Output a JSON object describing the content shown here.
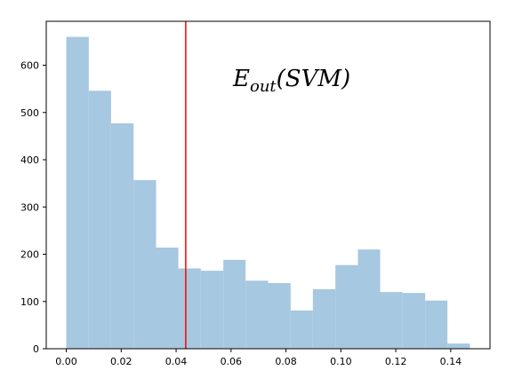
{
  "chart_data": {
    "type": "bar",
    "bins": [
      {
        "x0": 0.0,
        "x1": 0.0082,
        "count": 660
      },
      {
        "x0": 0.0082,
        "x1": 0.0163,
        "count": 546
      },
      {
        "x0": 0.0163,
        "x1": 0.0245,
        "count": 477
      },
      {
        "x0": 0.0245,
        "x1": 0.0327,
        "count": 357
      },
      {
        "x0": 0.0327,
        "x1": 0.0408,
        "count": 214
      },
      {
        "x0": 0.0408,
        "x1": 0.049,
        "count": 170
      },
      {
        "x0": 0.049,
        "x1": 0.0572,
        "count": 165
      },
      {
        "x0": 0.0572,
        "x1": 0.0653,
        "count": 188
      },
      {
        "x0": 0.0653,
        "x1": 0.0735,
        "count": 144
      },
      {
        "x0": 0.0735,
        "x1": 0.0817,
        "count": 139
      },
      {
        "x0": 0.0817,
        "x1": 0.0898,
        "count": 81
      },
      {
        "x0": 0.0898,
        "x1": 0.098,
        "count": 126
      },
      {
        "x0": 0.098,
        "x1": 0.1062,
        "count": 177
      },
      {
        "x0": 0.1062,
        "x1": 0.1143,
        "count": 210
      },
      {
        "x0": 0.1143,
        "x1": 0.1225,
        "count": 120
      },
      {
        "x0": 0.1225,
        "x1": 0.1307,
        "count": 118
      },
      {
        "x0": 0.1307,
        "x1": 0.1388,
        "count": 102
      },
      {
        "x0": 0.1388,
        "x1": 0.147,
        "count": 11
      }
    ],
    "vline": {
      "x": 0.0435,
      "color": "#ff0000"
    },
    "bar_color": "#a6c8e0",
    "xlim": [
      -0.0073,
      0.1543
    ],
    "ylim": [
      0,
      693
    ],
    "xticks": [
      0.0,
      0.02,
      0.04,
      0.06,
      0.08,
      0.1,
      0.12,
      0.14
    ],
    "xtick_labels": [
      "0.00",
      "0.02",
      "0.04",
      "0.06",
      "0.08",
      "0.10",
      "0.12",
      "0.14"
    ],
    "yticks": [
      0,
      100,
      200,
      300,
      400,
      500,
      600
    ],
    "ytick_labels": [
      "0",
      "100",
      "200",
      "300",
      "400",
      "500",
      "600"
    ],
    "annotation": {
      "main": "E",
      "sub": "out",
      "tail": "(SVM)"
    },
    "grid": false,
    "title": "",
    "xlabel": "",
    "ylabel": ""
  }
}
